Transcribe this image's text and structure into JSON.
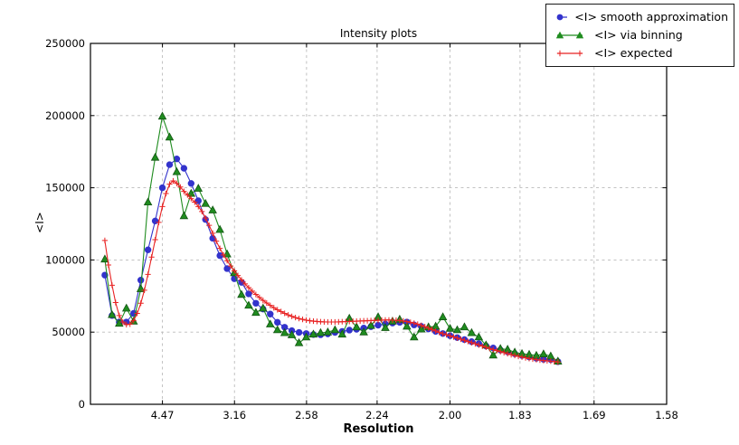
{
  "chart_data": {
    "type": "line",
    "title": "Intensity plots",
    "xlabel": "Resolution",
    "ylabel": "<I>",
    "grid": true,
    "legend_position": "upper-right-outside",
    "axes": {
      "xlim_s": [
        0,
        0.40058
      ],
      "ylim": [
        0,
        250000
      ],
      "x_is_reciprocal_resolution": "ticks labeled in d (Å), spaced linearly in 1/d^2",
      "xticks": [
        {
          "label": "4.47",
          "s": 0.05005
        },
        {
          "label": "3.16",
          "s": 0.10014
        },
        {
          "label": "2.58",
          "s": 0.15022
        },
        {
          "label": "2.24",
          "s": 0.19929
        },
        {
          "label": "2.00",
          "s": 0.25
        },
        {
          "label": "1.83",
          "s": 0.29863
        },
        {
          "label": "1.69",
          "s": 0.35013
        },
        {
          "label": "1.58",
          "s": 0.40058
        }
      ],
      "yticks": [
        {
          "label": "0",
          "v": 0
        },
        {
          "label": "50000",
          "v": 50000
        },
        {
          "label": "100000",
          "v": 100000
        },
        {
          "label": "150000",
          "v": 150000
        },
        {
          "label": "200000",
          "v": 200000
        },
        {
          "label": "250000",
          "v": 250000
        }
      ]
    },
    "colors": {
      "smooth": "#3333cc",
      "binning": "#1f8c1f",
      "binning_edge": "#135413",
      "expected": "#e82222",
      "grid": "#bbbbbb",
      "axis": "#000000"
    },
    "series": [
      {
        "name": "<I> smooth approximation",
        "marker": "circle",
        "color": "#3333cc",
        "s_start": 0.01,
        "s_step": 0.005,
        "values": [
          89500,
          61500,
          57000,
          57000,
          63000,
          86000,
          107000,
          127000,
          150000,
          166000,
          170000,
          163500,
          153000,
          141000,
          128000,
          115000,
          103000,
          94000,
          87000,
          84500,
          76500,
          70000,
          66000,
          62500,
          56800,
          53400,
          51000,
          49800,
          49000,
          48300,
          48200,
          48800,
          49800,
          50500,
          51400,
          52000,
          52800,
          53800,
          54800,
          55600,
          56300,
          56800,
          57000,
          55000,
          54000,
          52200,
          50500,
          49000,
          47500,
          46200,
          44800,
          43400,
          42000,
          40400,
          39000,
          37600,
          36300,
          35000,
          33800,
          32800,
          31900,
          31200,
          31000,
          29500
        ]
      },
      {
        "name": "<I> via binning",
        "marker": "triangle",
        "color": "#1f8c1f",
        "s_start": 0.01,
        "s_step": 0.005,
        "values": [
          100500,
          62000,
          56000,
          66500,
          57500,
          80000,
          140000,
          171000,
          199500,
          185000,
          161000,
          130500,
          146000,
          149500,
          139000,
          134500,
          121000,
          104000,
          91000,
          76000,
          68500,
          63500,
          66500,
          55500,
          51500,
          49500,
          48000,
          42500,
          46500,
          48500,
          49500,
          50000,
          51500,
          48500,
          59500,
          53500,
          50000,
          54500,
          60500,
          53000,
          57500,
          58800,
          54000,
          46500,
          52000,
          53500,
          54000,
          60500,
          52500,
          51500,
          53500,
          49500,
          46500,
          41000,
          34000,
          38500,
          38000,
          36000,
          35000,
          34500,
          33800,
          34800,
          33300,
          29800
        ]
      },
      {
        "name": "<I> expected",
        "marker": "plus",
        "color": "#e82222",
        "s_start": 0.01,
        "s_step": 0.0025,
        "values": [
          113500,
          96500,
          82500,
          70500,
          61500,
          57000,
          55200,
          55500,
          58000,
          63000,
          70000,
          79000,
          90000,
          102000,
          114000,
          126000,
          137000,
          146000,
          152500,
          154800,
          153000,
          150500,
          147500,
          145000,
          142500,
          140000,
          137000,
          133500,
          129000,
          124000,
          118500,
          113000,
          108000,
          103500,
          99500,
          95800,
          92400,
          89200,
          86200,
          83400,
          80800,
          78400,
          76100,
          74000,
          72000,
          70200,
          68500,
          66900,
          65500,
          64200,
          63000,
          61900,
          60900,
          60100,
          59400,
          58800,
          58300,
          57900,
          57600,
          57400,
          57200,
          57100,
          57000,
          57000,
          57000,
          57100,
          57200,
          57300,
          57400,
          57500,
          57600,
          57700,
          57800,
          57900,
          58000,
          58100,
          58200,
          58300,
          58400,
          58400,
          58300,
          58200,
          58000,
          57700,
          57300,
          56800,
          56200,
          55500,
          54700,
          53800,
          52800,
          51800,
          50800,
          49800,
          48900,
          48200,
          47500,
          46700,
          45900,
          45100,
          44300,
          43500,
          42700,
          41900,
          41100,
          40300,
          39500,
          38700,
          37900,
          37200,
          36500,
          35800,
          35100,
          34400,
          33800,
          33200,
          32700,
          32200,
          31700,
          31300,
          30900,
          30600,
          30300,
          30100,
          29900,
          29600,
          29300
        ]
      }
    ]
  }
}
